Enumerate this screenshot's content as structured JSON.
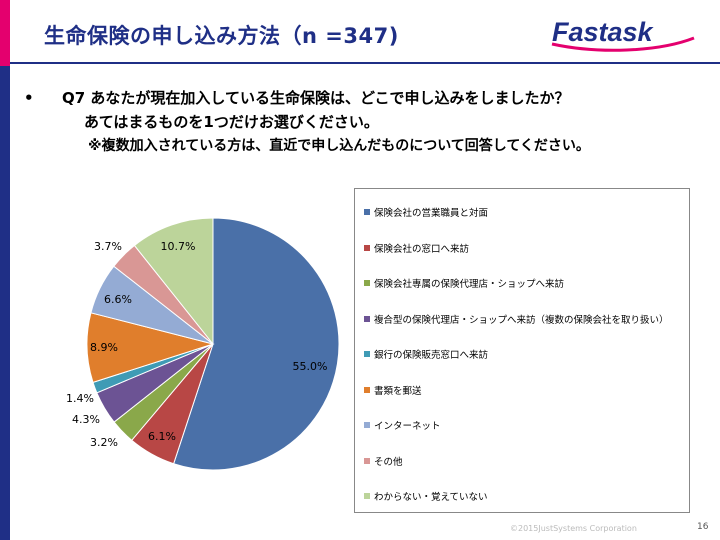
{
  "header": {
    "title": "生命保険の申し込み方法（n =347)",
    "logo_text": "Fastask",
    "accent_color": "#e4006e",
    "brand_color": "#1f2f86"
  },
  "question": {
    "bullet": "•",
    "line1": "Q7 あなたが現在加入している生命保険は、どこで申し込みをしましたか？",
    "line2": "あてはまるものを1つだけお選びください。",
    "line3": "※複数加入されている方は、直近で申し込んだものについて回答してください。"
  },
  "chart_data": {
    "type": "pie",
    "slices": [
      {
        "label": "保険会社の営業職員と対面",
        "value": 55.0,
        "display": "55.0%",
        "color": "#4a70a8"
      },
      {
        "label": "保険会社の窓口へ来訪",
        "value": 6.1,
        "display": "6.1%",
        "color": "#b84745"
      },
      {
        "label": "保険会社専属の保険代理店・ショップへ来訪",
        "value": 3.2,
        "display": "3.2%",
        "color": "#8aa84a"
      },
      {
        "label": "複合型の保険代理店・ショップへ来訪（複数の保険会社を取り扱い）",
        "value": 4.3,
        "display": "4.3%",
        "color": "#6c5394"
      },
      {
        "label": "銀行の保険販売窓口へ来訪",
        "value": 1.4,
        "display": "1.4%",
        "color": "#3f9bb5"
      },
      {
        "label": "書類を郵送",
        "value": 8.9,
        "display": "8.9%",
        "color": "#e07e2c"
      },
      {
        "label": "インターネット",
        "value": 6.6,
        "display": "6.6%",
        "color": "#94abd4"
      },
      {
        "label": "その他",
        "value": 3.7,
        "display": "3.7%",
        "color": "#d99795"
      },
      {
        "label": "わからない・覚えていない",
        "value": 10.7,
        "display": "10.7%",
        "color": "#bcd49a"
      }
    ],
    "start": "12 o'clock",
    "direction": "clockwise",
    "legend_position": "right"
  },
  "footer": {
    "copyright": "©2015JustSystems Corporation",
    "page_number": "16"
  }
}
